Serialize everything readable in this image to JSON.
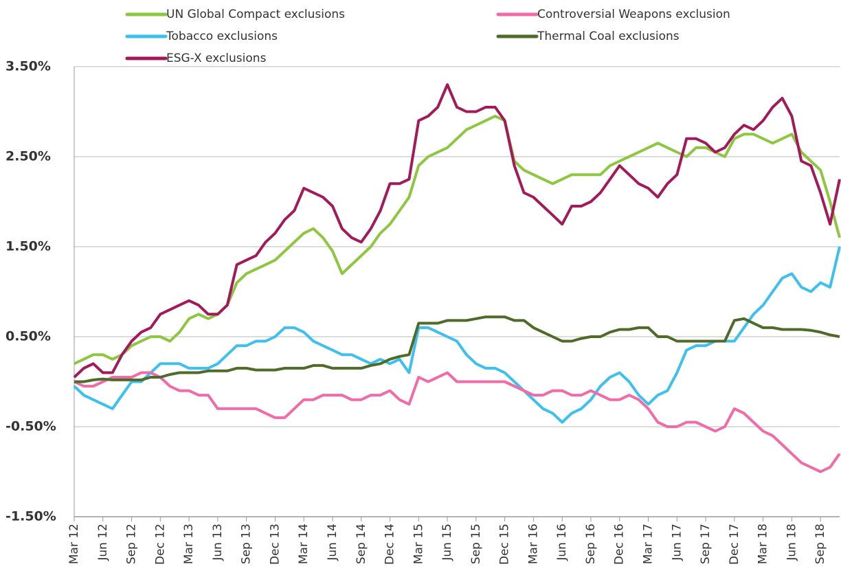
{
  "chart_data": {
    "type": "line",
    "categories": [
      "Mar 12",
      null,
      null,
      "Jun 12",
      null,
      null,
      "Sep 12",
      null,
      null,
      "Dec 12",
      null,
      null,
      "Mar 13",
      null,
      null,
      "Jun 13",
      null,
      null,
      "Sep 13",
      null,
      null,
      "Dec 13",
      null,
      null,
      "Mar 14",
      null,
      null,
      "Jun 14",
      null,
      null,
      "Sep 14",
      null,
      null,
      "Dec 14",
      null,
      null,
      "Mar 15",
      null,
      null,
      "Jun 15",
      null,
      null,
      "Sep 15",
      null,
      null,
      "Dec 15",
      null,
      null,
      "Mar 16",
      null,
      null,
      "Jun 16",
      null,
      null,
      "Sep 16",
      null,
      null,
      "Dec 16",
      null,
      null,
      "Mar 17",
      null,
      null,
      "Jun 17",
      null,
      null,
      "Sep 17",
      null,
      null,
      "Dec 17",
      null,
      null,
      "Mar 18",
      null,
      null,
      "Jun 18",
      null,
      null,
      "Sep 18",
      null,
      null
    ],
    "series": [
      {
        "name": "UN Global Compact exclusions",
        "color": "#8dc63f",
        "values": [
          0.2,
          0.25,
          0.3,
          0.3,
          0.25,
          0.3,
          0.4,
          0.45,
          0.5,
          0.5,
          0.45,
          0.55,
          0.7,
          0.75,
          0.7,
          0.75,
          0.85,
          1.1,
          1.2,
          1.25,
          1.3,
          1.35,
          1.45,
          1.55,
          1.65,
          1.7,
          1.6,
          1.45,
          1.2,
          1.3,
          1.4,
          1.5,
          1.65,
          1.75,
          1.9,
          2.05,
          2.4,
          2.5,
          2.55,
          2.6,
          2.7,
          2.8,
          2.85,
          2.9,
          2.95,
          2.9,
          2.45,
          2.35,
          2.3,
          2.25,
          2.2,
          2.25,
          2.3,
          2.3,
          2.3,
          2.3,
          2.4,
          2.45,
          2.5,
          2.55,
          2.6,
          2.65,
          2.6,
          2.55,
          2.5,
          2.6,
          2.6,
          2.55,
          2.5,
          2.7,
          2.75,
          2.75,
          2.7,
          2.65,
          2.7,
          2.75,
          2.55,
          2.45,
          2.35,
          2.0,
          1.6
        ]
      },
      {
        "name": "Controversial Weapons exclusion",
        "color": "#f06ba8",
        "values": [
          0.0,
          -0.05,
          -0.05,
          0.0,
          0.05,
          0.05,
          0.05,
          0.1,
          0.1,
          0.05,
          -0.05,
          -0.1,
          -0.1,
          -0.15,
          -0.15,
          -0.3,
          -0.3,
          -0.3,
          -0.3,
          -0.3,
          -0.35,
          -0.4,
          -0.4,
          -0.3,
          -0.2,
          -0.2,
          -0.15,
          -0.15,
          -0.15,
          -0.2,
          -0.2,
          -0.15,
          -0.15,
          -0.1,
          -0.2,
          -0.25,
          0.05,
          0.0,
          0.05,
          0.1,
          0.0,
          0.0,
          0.0,
          0.0,
          0.0,
          0.0,
          -0.05,
          -0.1,
          -0.15,
          -0.15,
          -0.1,
          -0.1,
          -0.15,
          -0.15,
          -0.1,
          -0.15,
          -0.2,
          -0.2,
          -0.15,
          -0.2,
          -0.3,
          -0.45,
          -0.5,
          -0.5,
          -0.45,
          -0.45,
          -0.5,
          -0.55,
          -0.5,
          -0.3,
          -0.35,
          -0.45,
          -0.55,
          -0.6,
          -0.7,
          -0.8,
          -0.9,
          -0.95,
          -1.0,
          -0.95,
          -0.8
        ]
      },
      {
        "name": "Tobacco exclusions",
        "color": "#3dbfef",
        "values": [
          -0.05,
          -0.15,
          -0.2,
          -0.25,
          -0.3,
          -0.15,
          0.0,
          0.0,
          0.1,
          0.2,
          0.2,
          0.2,
          0.15,
          0.15,
          0.15,
          0.2,
          0.3,
          0.4,
          0.4,
          0.45,
          0.45,
          0.5,
          0.6,
          0.6,
          0.55,
          0.45,
          0.4,
          0.35,
          0.3,
          0.3,
          0.25,
          0.2,
          0.25,
          0.2,
          0.25,
          0.1,
          0.6,
          0.6,
          0.55,
          0.5,
          0.45,
          0.3,
          0.2,
          0.15,
          0.15,
          0.1,
          0.0,
          -0.1,
          -0.2,
          -0.3,
          -0.35,
          -0.45,
          -0.35,
          -0.3,
          -0.2,
          -0.05,
          0.05,
          0.1,
          0.0,
          -0.15,
          -0.25,
          -0.15,
          -0.1,
          0.1,
          0.35,
          0.4,
          0.4,
          0.45,
          0.45,
          0.45,
          0.6,
          0.75,
          0.85,
          1.0,
          1.15,
          1.2,
          1.05,
          1.0,
          1.1,
          1.05,
          1.5
        ]
      },
      {
        "name": "Thermal Coal exclusions",
        "color": "#4f6b2a",
        "values": [
          0.0,
          0.0,
          0.02,
          0.03,
          0.02,
          0.02,
          0.02,
          0.02,
          0.05,
          0.05,
          0.08,
          0.1,
          0.1,
          0.1,
          0.12,
          0.12,
          0.12,
          0.15,
          0.15,
          0.13,
          0.13,
          0.13,
          0.15,
          0.15,
          0.15,
          0.18,
          0.18,
          0.15,
          0.15,
          0.15,
          0.15,
          0.18,
          0.2,
          0.25,
          0.28,
          0.3,
          0.65,
          0.65,
          0.65,
          0.68,
          0.68,
          0.68,
          0.7,
          0.72,
          0.72,
          0.72,
          0.68,
          0.68,
          0.6,
          0.55,
          0.5,
          0.45,
          0.45,
          0.48,
          0.5,
          0.5,
          0.55,
          0.58,
          0.58,
          0.6,
          0.6,
          0.5,
          0.5,
          0.45,
          0.45,
          0.45,
          0.45,
          0.45,
          0.45,
          0.68,
          0.7,
          0.65,
          0.6,
          0.6,
          0.58,
          0.58,
          0.58,
          0.57,
          0.55,
          0.52,
          0.5
        ]
      },
      {
        "name": "ESG-X exclusions",
        "color": "#a31a5a",
        "values": [
          0.05,
          0.15,
          0.2,
          0.1,
          0.1,
          0.3,
          0.45,
          0.55,
          0.6,
          0.75,
          0.8,
          0.85,
          0.9,
          0.85,
          0.75,
          0.75,
          0.85,
          1.3,
          1.35,
          1.4,
          1.55,
          1.65,
          1.8,
          1.9,
          2.15,
          2.1,
          2.05,
          1.95,
          1.7,
          1.6,
          1.55,
          1.7,
          1.9,
          2.2,
          2.2,
          2.25,
          2.9,
          2.95,
          3.05,
          3.3,
          3.05,
          3.0,
          3.0,
          3.05,
          3.05,
          2.9,
          2.4,
          2.1,
          2.05,
          1.95,
          1.85,
          1.75,
          1.95,
          1.95,
          2.0,
          2.1,
          2.25,
          2.4,
          2.3,
          2.2,
          2.15,
          2.05,
          2.2,
          2.3,
          2.7,
          2.7,
          2.65,
          2.55,
          2.6,
          2.75,
          2.85,
          2.8,
          2.9,
          3.05,
          3.15,
          2.95,
          2.45,
          2.4,
          2.1,
          1.75,
          2.25
        ]
      }
    ],
    "ylim": [
      -1.5,
      3.5
    ],
    "yticks": [
      {
        "value": -1.5,
        "label": "-1.50%"
      },
      {
        "value": -0.5,
        "label": "-0.50%"
      },
      {
        "value": 0.5,
        "label": "0.50%"
      },
      {
        "value": 1.5,
        "label": "1.50%"
      },
      {
        "value": 2.5,
        "label": "2.50%"
      },
      {
        "value": 3.5,
        "label": "3.50%"
      }
    ],
    "grid": true
  }
}
